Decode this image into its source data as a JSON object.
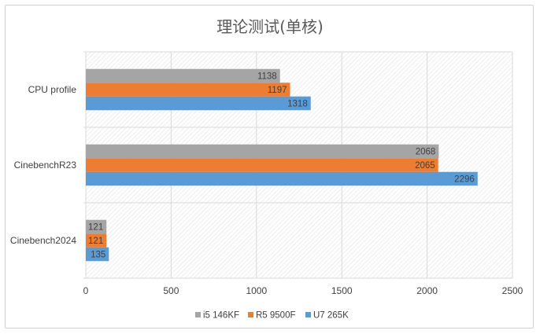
{
  "chart_data": {
    "type": "bar",
    "orientation": "horizontal",
    "title": "理论测试(单核)",
    "categories": [
      "CPU profile",
      "CinebenchR23",
      "Cinebench2024"
    ],
    "series": [
      {
        "name": "i5 146KF",
        "color": "#a5a5a5",
        "values": [
          1138,
          2068,
          121
        ]
      },
      {
        "name": "R5 9500F",
        "color": "#ed7d31",
        "values": [
          1197,
          2065,
          121
        ]
      },
      {
        "name": "U7 265K",
        "color": "#5b9bd5",
        "values": [
          1318,
          2296,
          135
        ]
      }
    ],
    "xlim": [
      0,
      2500
    ],
    "xticks": [
      0,
      500,
      1000,
      1500,
      2000,
      2500
    ],
    "xlabel": "",
    "ylabel": "",
    "grid": true,
    "legend_position": "bottom"
  }
}
